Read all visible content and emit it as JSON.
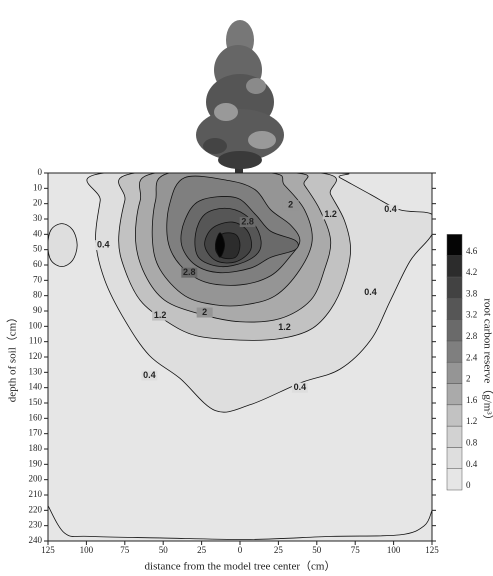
{
  "chart_data": {
    "type": "contour",
    "x_label": "distance from the model tree center（cm）",
    "y_label": "depth of soil（cm）",
    "colorbar_label": "root carbon reserve（g/m³）",
    "xlim": [
      -125,
      125
    ],
    "ylim": [
      240,
      0
    ],
    "xticks": [
      {
        "value": -125,
        "label": "125"
      },
      {
        "value": -100,
        "label": "100"
      },
      {
        "value": -75,
        "label": "75"
      },
      {
        "value": -50,
        "label": "50"
      },
      {
        "value": -25,
        "label": "25"
      },
      0,
      25,
      50,
      75,
      100,
      125
    ],
    "yticks": [
      0,
      10,
      20,
      30,
      40,
      50,
      60,
      70,
      80,
      90,
      100,
      110,
      120,
      130,
      140,
      150,
      160,
      170,
      180,
      190,
      200,
      210,
      220,
      230,
      240
    ],
    "colorbar": {
      "levels": [
        0,
        0.4,
        0.8,
        1.2,
        1.6,
        2,
        2.4,
        2.8,
        3.2,
        3.8,
        4.2,
        4.6
      ],
      "colors": [
        "#e6e6e6",
        "#dedede",
        "#d2d2d2",
        "#c2c2c2",
        "#aaaaaa",
        "#959595",
        "#7f7f7f",
        "#6a6a6a",
        "#565656",
        "#424242",
        "#2c2c2c",
        "#050505"
      ]
    },
    "contours": [
      {
        "level": 0.4,
        "closed": true,
        "x": [
          -88,
          -91,
          -94,
          -88,
          -75,
          -59,
          -39,
          -16,
          7,
          39,
          65,
          85,
          98,
          111,
          125,
          125,
          104,
          85,
          65,
          59
        ],
        "y": [
          0,
          18,
          44,
          70,
          96,
          119,
          134,
          155,
          151,
          137,
          128,
          109,
          83,
          57,
          40,
          27,
          24,
          14,
          3,
          0
        ]
      },
      {
        "level": 0.4,
        "closed": true,
        "x": [
          -116,
          -109,
          -106,
          -109,
          -116,
          -123,
          -125,
          -123
        ],
        "y": [
          33,
          37,
          47,
          57,
          61,
          57,
          47,
          37
        ]
      },
      {
        "level": 0.4,
        "closed": false,
        "x": [
          -125,
          -114,
          -98,
          -52,
          7,
          59,
          104,
          120,
          125
        ],
        "y": [
          217,
          235,
          237,
          238,
          239,
          237,
          236,
          230,
          220
        ]
      },
      {
        "level": 1.2,
        "closed": true,
        "x": [
          -68,
          -75,
          -79,
          -75,
          -65,
          -49,
          -29,
          0,
          26,
          46,
          59,
          68,
          72,
          68,
          59,
          52
        ],
        "y": [
          0,
          18,
          44,
          63,
          83,
          96,
          106,
          109,
          108,
          102,
          89,
          70,
          50,
          31,
          14,
          0
        ]
      },
      {
        "level": 1.6,
        "closed": true,
        "x": [
          -55,
          -65,
          -68,
          -62,
          -49,
          -26,
          0,
          26,
          46,
          55,
          59,
          52,
          42,
          36
        ],
        "y": [
          0,
          18,
          44,
          66,
          83,
          92,
          97,
          95,
          83,
          63,
          44,
          24,
          8,
          0
        ]
      },
      {
        "level": 2,
        "closed": true,
        "x": [
          -46,
          -55,
          -57,
          -52,
          -36,
          -16,
          3,
          23,
          39,
          47,
          42,
          29,
          20
        ],
        "y": [
          0,
          18,
          44,
          63,
          80,
          86,
          86,
          80,
          63,
          44,
          24,
          8,
          0
        ]
      },
      {
        "level": 2.4,
        "closed": true,
        "x": [
          -36,
          -46,
          -47,
          -39,
          -23,
          0,
          20,
          33,
          39,
          33,
          20,
          10,
          -7
        ],
        "y": [
          3,
          21,
          44,
          60,
          71,
          73,
          67,
          54,
          44,
          34,
          24,
          11,
          5
        ]
      },
      {
        "level": 2.8,
        "closed": true,
        "x": [
          -26,
          -36,
          -38,
          -29,
          -13,
          7,
          20,
          36,
          36,
          20,
          10,
          -3
        ],
        "y": [
          18,
          31,
          47,
          60,
          65,
          62,
          55,
          50,
          44,
          38,
          27,
          16
        ]
      },
      {
        "level": 3.2,
        "closed": true,
        "x": [
          -23,
          -29,
          -27,
          -13,
          3,
          13,
          12,
          3,
          -10
        ],
        "y": [
          27,
          40,
          55,
          61,
          58,
          50,
          38,
          27,
          23
        ]
      },
      {
        "level": 3.8,
        "closed": true,
        "x": [
          -18,
          -23,
          -16,
          -3,
          7,
          5,
          -5
        ],
        "y": [
          36,
          47,
          57,
          58,
          50,
          38,
          32
        ]
      },
      {
        "level": 4.2,
        "closed": true,
        "x": [
          -12,
          -16,
          -12,
          -3,
          0,
          -3
        ],
        "y": [
          40,
          49,
          55,
          55,
          47,
          40
        ]
      },
      {
        "level": 4.6,
        "closed": true,
        "x": [
          -13,
          -10,
          -13,
          -16
        ],
        "y": [
          39,
          47,
          55,
          47
        ]
      }
    ],
    "contour_labels": [
      {
        "value": 0.4,
        "x": -89,
        "y": 47
      },
      {
        "value": 0.4,
        "x": -59,
        "y": 132
      },
      {
        "value": 0.4,
        "x": 39,
        "y": 140
      },
      {
        "value": 0.4,
        "x": 85,
        "y": 78
      },
      {
        "value": 0.4,
        "x": 98,
        "y": 24
      },
      {
        "value": 1.2,
        "x": -52,
        "y": 93
      },
      {
        "value": 1.2,
        "x": 29,
        "y": 101
      },
      {
        "value": 1.2,
        "x": 59,
        "y": 27
      },
      {
        "value": 2,
        "x": 33,
        "y": 21
      },
      {
        "value": 2,
        "x": -23,
        "y": 91
      },
      {
        "value": 2.8,
        "x": 5,
        "y": 32
      },
      {
        "value": 2.8,
        "x": -33,
        "y": 65
      }
    ]
  }
}
